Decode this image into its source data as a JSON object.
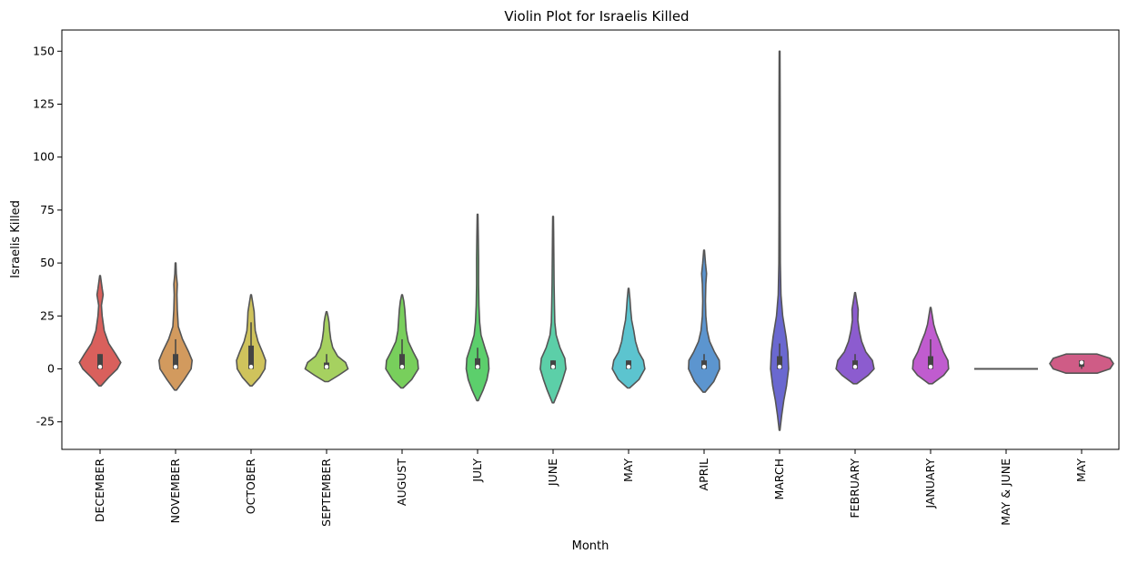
{
  "chart_data": {
    "type": "violin",
    "title": "Violin Plot for Israelis Killed",
    "xlabel": "Month",
    "ylabel": "Israelis Killed",
    "ylim": [
      -38,
      160
    ],
    "yticks": [
      -25,
      0,
      25,
      50,
      75,
      100,
      125,
      150
    ],
    "grid": false,
    "categories": [
      "DECEMBER",
      "NOVEMBER",
      "OCTOBER",
      "SEPTEMBER",
      "AUGUST",
      "JULY",
      "JUNE",
      "MAY",
      "APRIL",
      "MARCH",
      "FEBRUARY",
      "JANUARY",
      "MAY & JUNE",
      "MAY"
    ],
    "colors": [
      "#d9605c",
      "#d29a5e",
      "#cfc35c",
      "#a6d160",
      "#78cf5c",
      "#5ccf6c",
      "#5ccfa8",
      "#5cc4cf",
      "#5c95cf",
      "#6a68d0",
      "#8c5ccf",
      "#c05ccf",
      "#cf5cb4",
      "#cf5c86"
    ],
    "violins": [
      {
        "min": -8,
        "max": 44,
        "q1": 0,
        "median": 1,
        "q3": 7,
        "whisker_high": 7,
        "profile": [
          [
            -8,
            0.03
          ],
          [
            -4,
            0.25
          ],
          [
            0,
            0.5
          ],
          [
            3,
            0.6
          ],
          [
            7,
            0.45
          ],
          [
            12,
            0.25
          ],
          [
            18,
            0.12
          ],
          [
            25,
            0.06
          ],
          [
            30,
            0.04
          ],
          [
            35,
            0.09
          ],
          [
            38,
            0.06
          ],
          [
            44,
            0.01
          ]
        ]
      },
      {
        "min": -10,
        "max": 50,
        "q1": 0,
        "median": 1,
        "q3": 7,
        "whisker_high": 14,
        "profile": [
          [
            -10,
            0.03
          ],
          [
            -5,
            0.25
          ],
          [
            0,
            0.45
          ],
          [
            4,
            0.48
          ],
          [
            8,
            0.38
          ],
          [
            14,
            0.2
          ],
          [
            20,
            0.08
          ],
          [
            28,
            0.05
          ],
          [
            35,
            0.04
          ],
          [
            40,
            0.05
          ],
          [
            45,
            0.02
          ],
          [
            50,
            0.01
          ]
        ]
      },
      {
        "min": -8,
        "max": 35,
        "q1": 0,
        "median": 1,
        "q3": 11,
        "whisker_high": 22,
        "profile": [
          [
            -8,
            0.03
          ],
          [
            -4,
            0.25
          ],
          [
            0,
            0.4
          ],
          [
            4,
            0.42
          ],
          [
            8,
            0.33
          ],
          [
            13,
            0.2
          ],
          [
            18,
            0.12
          ],
          [
            23,
            0.1
          ],
          [
            27,
            0.09
          ],
          [
            31,
            0.05
          ],
          [
            35,
            0.01
          ]
        ]
      },
      {
        "min": -6,
        "max": 27,
        "q1": 0,
        "median": 1,
        "q3": 3,
        "whisker_high": 7,
        "profile": [
          [
            -6,
            0.05
          ],
          [
            -3,
            0.35
          ],
          [
            0,
            0.62
          ],
          [
            3,
            0.55
          ],
          [
            6,
            0.32
          ],
          [
            10,
            0.18
          ],
          [
            14,
            0.12
          ],
          [
            18,
            0.09
          ],
          [
            22,
            0.07
          ],
          [
            25,
            0.04
          ],
          [
            27,
            0.01
          ]
        ]
      },
      {
        "min": -9,
        "max": 35,
        "q1": 0,
        "median": 1,
        "q3": 7,
        "whisker_high": 14,
        "profile": [
          [
            -9,
            0.03
          ],
          [
            -5,
            0.28
          ],
          [
            0,
            0.47
          ],
          [
            4,
            0.45
          ],
          [
            8,
            0.32
          ],
          [
            13,
            0.18
          ],
          [
            18,
            0.12
          ],
          [
            23,
            0.1
          ],
          [
            28,
            0.08
          ],
          [
            32,
            0.05
          ],
          [
            35,
            0.01
          ]
        ]
      },
      {
        "min": -15,
        "max": 73,
        "q1": 0,
        "median": 1,
        "q3": 5,
        "whisker_high": 10,
        "profile": [
          [
            -15,
            0.02
          ],
          [
            -10,
            0.16
          ],
          [
            -5,
            0.27
          ],
          [
            0,
            0.33
          ],
          [
            5,
            0.31
          ],
          [
            10,
            0.21
          ],
          [
            16,
            0.1
          ],
          [
            22,
            0.06
          ],
          [
            30,
            0.04
          ],
          [
            40,
            0.03
          ],
          [
            52,
            0.03
          ],
          [
            62,
            0.02
          ],
          [
            73,
            0.01
          ]
        ]
      },
      {
        "min": -16,
        "max": 72,
        "q1": 0,
        "median": 1,
        "q3": 4,
        "whisker_high": 4,
        "profile": [
          [
            -16,
            0.02
          ],
          [
            -10,
            0.17
          ],
          [
            -5,
            0.28
          ],
          [
            0,
            0.37
          ],
          [
            5,
            0.34
          ],
          [
            10,
            0.2
          ],
          [
            16,
            0.09
          ],
          [
            22,
            0.05
          ],
          [
            30,
            0.04
          ],
          [
            40,
            0.03
          ],
          [
            55,
            0.02
          ],
          [
            65,
            0.015
          ],
          [
            72,
            0.01
          ]
        ]
      },
      {
        "min": -9,
        "max": 38,
        "q1": 0,
        "median": 1,
        "q3": 4,
        "whisker_high": 4,
        "profile": [
          [
            -9,
            0.03
          ],
          [
            -5,
            0.3
          ],
          [
            0,
            0.47
          ],
          [
            4,
            0.43
          ],
          [
            8,
            0.29
          ],
          [
            13,
            0.2
          ],
          [
            18,
            0.15
          ],
          [
            23,
            0.09
          ],
          [
            28,
            0.06
          ],
          [
            33,
            0.04
          ],
          [
            38,
            0.01
          ]
        ]
      },
      {
        "min": -11,
        "max": 56,
        "q1": 0,
        "median": 1,
        "q3": 4,
        "whisker_high": 7,
        "profile": [
          [
            -11,
            0.03
          ],
          [
            -6,
            0.28
          ],
          [
            0,
            0.45
          ],
          [
            4,
            0.44
          ],
          [
            8,
            0.3
          ],
          [
            13,
            0.16
          ],
          [
            18,
            0.09
          ],
          [
            25,
            0.05
          ],
          [
            32,
            0.04
          ],
          [
            40,
            0.05
          ],
          [
            45,
            0.07
          ],
          [
            50,
            0.04
          ],
          [
            56,
            0.01
          ]
        ]
      },
      {
        "min": -29,
        "max": 150,
        "q1": 0,
        "median": 1,
        "q3": 6,
        "whisker_high": 12,
        "profile": [
          [
            -29,
            0.01
          ],
          [
            -22,
            0.06
          ],
          [
            -15,
            0.12
          ],
          [
            -8,
            0.2
          ],
          [
            0,
            0.26
          ],
          [
            8,
            0.24
          ],
          [
            15,
            0.19
          ],
          [
            25,
            0.09
          ],
          [
            35,
            0.04
          ],
          [
            50,
            0.02
          ],
          [
            75,
            0.015
          ],
          [
            100,
            0.015
          ],
          [
            125,
            0.015
          ],
          [
            150,
            0.01
          ]
        ]
      },
      {
        "min": -7,
        "max": 36,
        "q1": 0,
        "median": 1,
        "q3": 4,
        "whisker_high": 7,
        "profile": [
          [
            -7,
            0.05
          ],
          [
            -3,
            0.38
          ],
          [
            0,
            0.55
          ],
          [
            4,
            0.5
          ],
          [
            8,
            0.31
          ],
          [
            13,
            0.19
          ],
          [
            18,
            0.12
          ],
          [
            23,
            0.08
          ],
          [
            28,
            0.09
          ],
          [
            32,
            0.05
          ],
          [
            36,
            0.01
          ]
        ]
      },
      {
        "min": -7,
        "max": 29,
        "q1": 0,
        "median": 1,
        "q3": 6,
        "whisker_high": 14,
        "profile": [
          [
            -7,
            0.05
          ],
          [
            -3,
            0.38
          ],
          [
            0,
            0.52
          ],
          [
            4,
            0.5
          ],
          [
            8,
            0.37
          ],
          [
            13,
            0.26
          ],
          [
            17,
            0.16
          ],
          [
            21,
            0.09
          ],
          [
            25,
            0.05
          ],
          [
            29,
            0.01
          ]
        ]
      },
      {
        "min": 0,
        "max": 0,
        "q1": 0,
        "median": 0,
        "q3": 0,
        "whisker_high": 0,
        "profile": []
      },
      {
        "min": -2,
        "max": 7,
        "q1": 1,
        "median": 3,
        "q3": 4,
        "whisker_high": 4,
        "profile": [
          [
            -2,
            0.45
          ],
          [
            0,
            0.82
          ],
          [
            2.5,
            0.92
          ],
          [
            5,
            0.82
          ],
          [
            7,
            0.45
          ]
        ]
      }
    ]
  }
}
